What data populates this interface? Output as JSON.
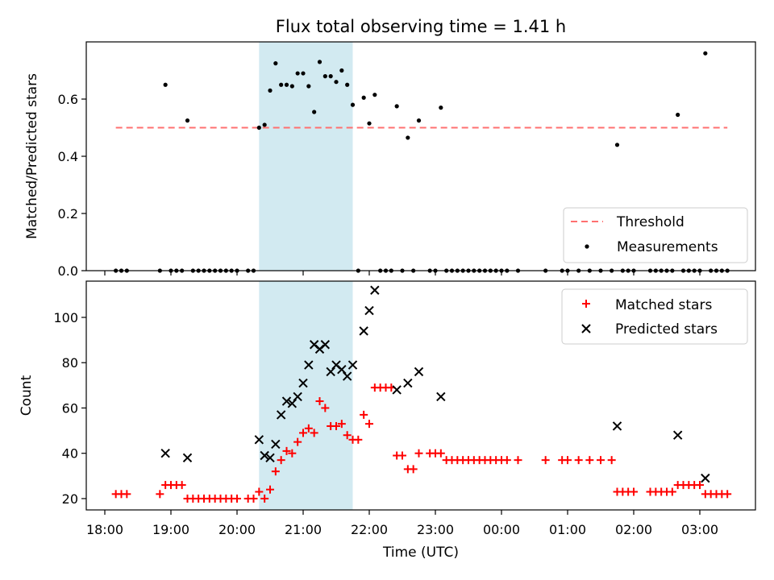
{
  "chart_data": [
    {
      "type": "scatter",
      "title": "Flux total observing time = 1.41 h",
      "ylabel": "Matched/Predicted stars",
      "xlabel": "",
      "ylim": [
        0,
        0.8
      ],
      "yticks": [
        0.0,
        0.2,
        0.4,
        0.6
      ],
      "ytick_labels": [
        "0.0",
        "0.2",
        "0.4",
        "0.6"
      ],
      "shaded_span": {
        "from": "20:20",
        "to": "21:45",
        "color": "#add8e6"
      },
      "threshold": {
        "name": "Threshold",
        "value": 0.5,
        "from": "18:10",
        "to": "03:25",
        "color": "#ff7070",
        "style": "dashed"
      },
      "legend": [
        "Threshold",
        "Measurements"
      ],
      "legend_position": "lower-right",
      "series": [
        {
          "name": "Measurements",
          "color": "#000000",
          "points": [
            [
              "18:10",
              0
            ],
            [
              "18:15",
              0
            ],
            [
              "18:20",
              0
            ],
            [
              "18:50",
              0
            ],
            [
              "18:55",
              0.65
            ],
            [
              "19:00",
              0
            ],
            [
              "19:05",
              0
            ],
            [
              "19:10",
              0
            ],
            [
              "19:15",
              0.525
            ],
            [
              "19:20",
              0
            ],
            [
              "19:25",
              0
            ],
            [
              "19:30",
              0
            ],
            [
              "19:35",
              0
            ],
            [
              "19:40",
              0
            ],
            [
              "19:45",
              0
            ],
            [
              "19:50",
              0
            ],
            [
              "19:55",
              0
            ],
            [
              "20:00",
              0
            ],
            [
              "20:10",
              0
            ],
            [
              "20:15",
              0
            ],
            [
              "20:20",
              0.5
            ],
            [
              "20:25",
              0.51
            ],
            [
              "20:30",
              0.63
            ],
            [
              "20:35",
              0.725
            ],
            [
              "20:40",
              0.65
            ],
            [
              "20:45",
              0.65
            ],
            [
              "20:50",
              0.645
            ],
            [
              "20:55",
              0.69
            ],
            [
              "21:00",
              0.69
            ],
            [
              "21:05",
              0.645
            ],
            [
              "21:10",
              0.555
            ],
            [
              "21:15",
              0.73
            ],
            [
              "21:20",
              0.68
            ],
            [
              "21:25",
              0.68
            ],
            [
              "21:30",
              0.66
            ],
            [
              "21:35",
              0.7
            ],
            [
              "21:40",
              0.65
            ],
            [
              "21:45",
              0.58
            ],
            [
              "21:50",
              0
            ],
            [
              "21:55",
              0.605
            ],
            [
              "22:00",
              0.515
            ],
            [
              "22:05",
              0.615
            ],
            [
              "22:10",
              0
            ],
            [
              "22:15",
              0
            ],
            [
              "22:20",
              0
            ],
            [
              "22:25",
              0.575
            ],
            [
              "22:30",
              0
            ],
            [
              "22:35",
              0.465
            ],
            [
              "22:40",
              0
            ],
            [
              "22:45",
              0.525
            ],
            [
              "22:55",
              0
            ],
            [
              "23:00",
              0
            ],
            [
              "23:05",
              0.57
            ],
            [
              "23:10",
              0
            ],
            [
              "23:15",
              0
            ],
            [
              "23:20",
              0
            ],
            [
              "23:25",
              0
            ],
            [
              "23:30",
              0
            ],
            [
              "23:35",
              0
            ],
            [
              "23:40",
              0
            ],
            [
              "23:45",
              0
            ],
            [
              "23:50",
              0
            ],
            [
              "23:55",
              0
            ],
            [
              "00:00",
              0
            ],
            [
              "00:05",
              0
            ],
            [
              "00:15",
              0
            ],
            [
              "00:40",
              0
            ],
            [
              "00:55",
              0
            ],
            [
              "01:00",
              0
            ],
            [
              "01:10",
              0
            ],
            [
              "01:20",
              0
            ],
            [
              "01:30",
              0
            ],
            [
              "01:40",
              0
            ],
            [
              "01:45",
              0.44
            ],
            [
              "01:50",
              0
            ],
            [
              "01:55",
              0
            ],
            [
              "02:00",
              0
            ],
            [
              "02:15",
              0
            ],
            [
              "02:20",
              0
            ],
            [
              "02:25",
              0
            ],
            [
              "02:30",
              0
            ],
            [
              "02:35",
              0
            ],
            [
              "02:40",
              0.545
            ],
            [
              "02:45",
              0
            ],
            [
              "02:50",
              0
            ],
            [
              "02:55",
              0
            ],
            [
              "03:00",
              0
            ],
            [
              "03:05",
              0.76
            ],
            [
              "03:10",
              0
            ],
            [
              "03:15",
              0
            ],
            [
              "03:20",
              0
            ],
            [
              "03:25",
              0
            ]
          ]
        }
      ]
    },
    {
      "type": "scatter",
      "title": "",
      "ylabel": "Count",
      "xlabel": "Time (UTC)",
      "ylim": [
        15,
        116
      ],
      "yticks": [
        20,
        40,
        60,
        80,
        100
      ],
      "ytick_labels": [
        "20",
        "40",
        "60",
        "80",
        "100"
      ],
      "xtick_labels": [
        "18:00",
        "19:00",
        "20:00",
        "21:00",
        "22:00",
        "23:00",
        "00:00",
        "01:00",
        "02:00",
        "03:00"
      ],
      "legend": [
        "Matched stars",
        "Predicted stars"
      ],
      "legend_position": "upper-right",
      "series": [
        {
          "name": "Matched stars",
          "color": "#ff0000",
          "marker": "plus",
          "points": [
            [
              "18:10",
              22
            ],
            [
              "18:15",
              22
            ],
            [
              "18:20",
              22
            ],
            [
              "18:50",
              22
            ],
            [
              "18:55",
              26
            ],
            [
              "19:00",
              26
            ],
            [
              "19:05",
              26
            ],
            [
              "19:10",
              26
            ],
            [
              "19:15",
              20
            ],
            [
              "19:20",
              20
            ],
            [
              "19:25",
              20
            ],
            [
              "19:30",
              20
            ],
            [
              "19:35",
              20
            ],
            [
              "19:40",
              20
            ],
            [
              "19:45",
              20
            ],
            [
              "19:50",
              20
            ],
            [
              "19:55",
              20
            ],
            [
              "20:00",
              20
            ],
            [
              "20:10",
              20
            ],
            [
              "20:15",
              20
            ],
            [
              "20:20",
              23
            ],
            [
              "20:25",
              20
            ],
            [
              "20:30",
              24
            ],
            [
              "20:35",
              32
            ],
            [
              "20:40",
              37
            ],
            [
              "20:45",
              41
            ],
            [
              "20:50",
              40
            ],
            [
              "20:55",
              45
            ],
            [
              "21:00",
              49
            ],
            [
              "21:05",
              51
            ],
            [
              "21:10",
              49
            ],
            [
              "21:15",
              63
            ],
            [
              "21:20",
              60
            ],
            [
              "21:25",
              52
            ],
            [
              "21:30",
              52
            ],
            [
              "21:35",
              53
            ],
            [
              "21:40",
              48
            ],
            [
              "21:45",
              46
            ],
            [
              "21:50",
              46
            ],
            [
              "21:55",
              57
            ],
            [
              "22:00",
              53
            ],
            [
              "22:05",
              69
            ],
            [
              "22:10",
              69
            ],
            [
              "22:15",
              69
            ],
            [
              "22:20",
              69
            ],
            [
              "22:25",
              39
            ],
            [
              "22:30",
              39
            ],
            [
              "22:35",
              33
            ],
            [
              "22:40",
              33
            ],
            [
              "22:45",
              40
            ],
            [
              "22:55",
              40
            ],
            [
              "23:00",
              40
            ],
            [
              "23:05",
              40
            ],
            [
              "23:10",
              37
            ],
            [
              "23:15",
              37
            ],
            [
              "23:20",
              37
            ],
            [
              "23:25",
              37
            ],
            [
              "23:30",
              37
            ],
            [
              "23:35",
              37
            ],
            [
              "23:40",
              37
            ],
            [
              "23:45",
              37
            ],
            [
              "23:50",
              37
            ],
            [
              "23:55",
              37
            ],
            [
              "00:00",
              37
            ],
            [
              "00:05",
              37
            ],
            [
              "00:15",
              37
            ],
            [
              "00:40",
              37
            ],
            [
              "00:55",
              37
            ],
            [
              "01:00",
              37
            ],
            [
              "01:10",
              37
            ],
            [
              "01:20",
              37
            ],
            [
              "01:30",
              37
            ],
            [
              "01:40",
              37
            ],
            [
              "01:45",
              23
            ],
            [
              "01:50",
              23
            ],
            [
              "01:55",
              23
            ],
            [
              "02:00",
              23
            ],
            [
              "02:15",
              23
            ],
            [
              "02:20",
              23
            ],
            [
              "02:25",
              23
            ],
            [
              "02:30",
              23
            ],
            [
              "02:35",
              23
            ],
            [
              "02:40",
              26
            ],
            [
              "02:45",
              26
            ],
            [
              "02:50",
              26
            ],
            [
              "02:55",
              26
            ],
            [
              "03:00",
              26
            ],
            [
              "03:05",
              22
            ],
            [
              "03:10",
              22
            ],
            [
              "03:15",
              22
            ],
            [
              "03:20",
              22
            ],
            [
              "03:25",
              22
            ]
          ]
        },
        {
          "name": "Predicted stars",
          "color": "#000000",
          "marker": "x",
          "points": [
            [
              "18:55",
              40
            ],
            [
              "19:15",
              38
            ],
            [
              "20:20",
              46
            ],
            [
              "20:25",
              39
            ],
            [
              "20:30",
              38
            ],
            [
              "20:35",
              44
            ],
            [
              "20:40",
              57
            ],
            [
              "20:45",
              63
            ],
            [
              "20:50",
              62
            ],
            [
              "20:55",
              65
            ],
            [
              "21:00",
              71
            ],
            [
              "21:05",
              79
            ],
            [
              "21:10",
              88
            ],
            [
              "21:15",
              86
            ],
            [
              "21:20",
              88
            ],
            [
              "21:25",
              76
            ],
            [
              "21:30",
              79
            ],
            [
              "21:35",
              77
            ],
            [
              "21:40",
              74
            ],
            [
              "21:45",
              79
            ],
            [
              "21:55",
              94
            ],
            [
              "22:00",
              103
            ],
            [
              "22:05",
              112
            ],
            [
              "22:25",
              68
            ],
            [
              "22:35",
              71
            ],
            [
              "22:45",
              76
            ],
            [
              "23:05",
              65
            ],
            [
              "01:45",
              52
            ],
            [
              "02:40",
              48
            ],
            [
              "03:05",
              29
            ]
          ]
        }
      ]
    }
  ]
}
